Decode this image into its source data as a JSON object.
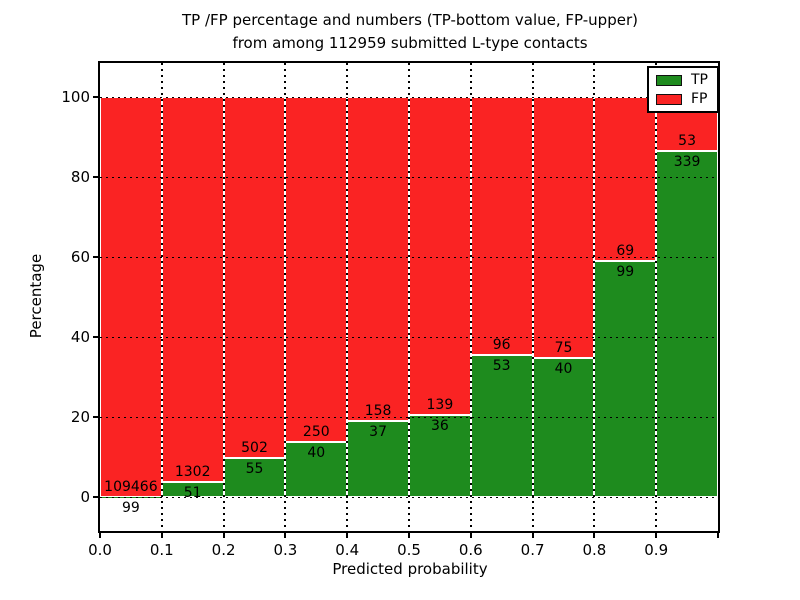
{
  "title_line1": "TP /FP percentage and numbers (TP-bottom value, FP-upper)",
  "title_line2": "from among 112959 submitted L-type contacts",
  "total_submitted": "112959",
  "chart_data": {
    "type": "bar",
    "stacked": true,
    "normalized_to_percent": true,
    "title": "TP /FP percentage and numbers (TP-bottom value, FP-upper) from among 112959 submitted L-type contacts",
    "xlabel": "Predicted probability",
    "ylabel": "Percentage",
    "x_bin_starts": [
      0.0,
      0.1,
      0.2,
      0.3,
      0.4,
      0.5,
      0.6,
      0.7,
      0.8,
      0.9
    ],
    "bin_width": 0.1,
    "xtick_labels": [
      "0.0",
      "0.1",
      "0.2",
      "0.3",
      "0.4",
      "0.5",
      "0.6",
      "0.7",
      "0.8",
      "0.9"
    ],
    "yticks": [
      0,
      20,
      40,
      60,
      80,
      100
    ],
    "ylim_drawn": [
      -8,
      109
    ],
    "grid": "dotted",
    "series": [
      {
        "name": "TP",
        "color": "#1e8b1e",
        "position": "bottom",
        "counts": [
          99,
          51,
          55,
          40,
          37,
          36,
          53,
          40,
          99,
          339
        ]
      },
      {
        "name": "FP",
        "color": "#fa2323",
        "position": "top",
        "counts": [
          109466,
          1302,
          502,
          250,
          158,
          139,
          96,
          75,
          69,
          53
        ]
      }
    ],
    "bar_edge_color": "#ffffff",
    "legend": {
      "position": "upper right",
      "entries": [
        "TP",
        "FP"
      ]
    }
  }
}
